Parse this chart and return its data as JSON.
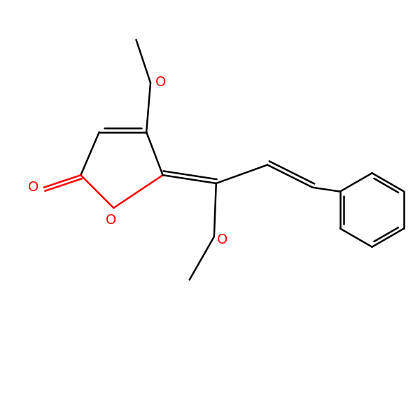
{
  "bg_color": "#ffffff",
  "bond_color": "#000000",
  "heteroatom_color": "#ff0000",
  "line_width": 1.8,
  "font_size": 14,
  "figsize": [
    6.0,
    6.0
  ],
  "dpi": 100,
  "xlim": [
    0,
    10
  ],
  "ylim": [
    0,
    10
  ]
}
